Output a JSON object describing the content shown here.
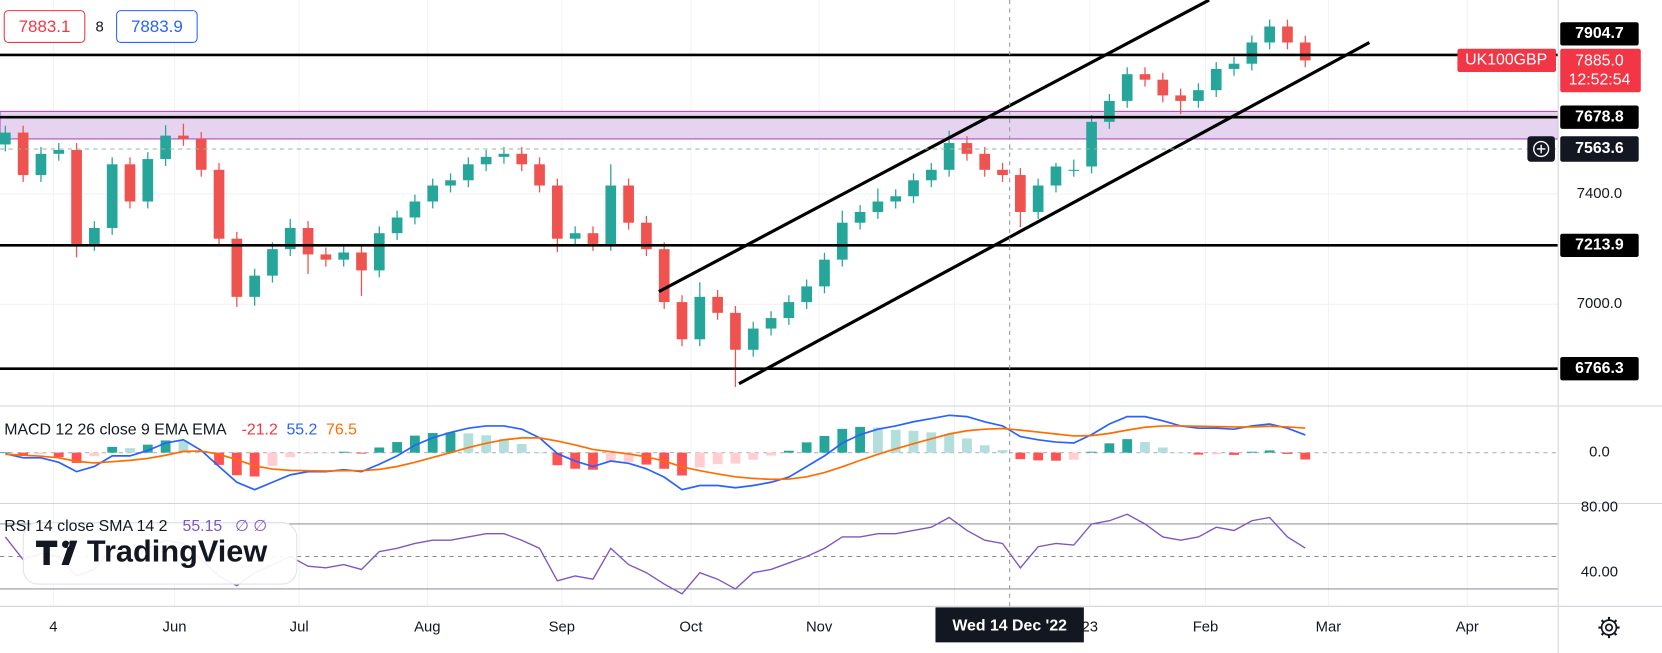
{
  "header": {
    "bid": 7883.1,
    "spread": 8,
    "ask": 7883.9
  },
  "chart_data": [
    {
      "type": "candlestick",
      "symbol": "UK100GBP",
      "last_price": {
        "value": 7885,
        "label": "7885.0"
      },
      "countdown": "12:52:54",
      "open": [
        7580,
        7623,
        7469,
        7546,
        7560,
        7219,
        7277,
        7508,
        7373,
        7527,
        7612,
        7600,
        7488,
        7238,
        7027,
        7104,
        7200,
        7277,
        7181,
        7162,
        7188,
        7123,
        7258,
        7315,
        7373,
        7431,
        7450,
        7508,
        7535,
        7546,
        7508,
        7431,
        7238,
        7258,
        7219,
        7431,
        7296,
        7200,
        7008,
        6873,
        7027,
        6969,
        6835,
        6912,
        6950,
        7008,
        7065,
        7162,
        7296,
        7335,
        7373,
        7392,
        7450,
        7488,
        7585,
        7546,
        7488,
        7469,
        7335,
        7431,
        7488,
        7500,
        7662,
        7738,
        7835,
        7815,
        7758,
        7738,
        7777,
        7854,
        7873,
        7950,
        8008,
        7950
      ],
      "high": [
        7648,
        7648,
        7571,
        7585,
        7585,
        7302,
        7533,
        7533,
        7552,
        7650,
        7655,
        7625,
        7513,
        7263,
        7129,
        7225,
        7310,
        7302,
        7206,
        7213,
        7213,
        7283,
        7340,
        7398,
        7456,
        7475,
        7533,
        7560,
        7571,
        7571,
        7533,
        7456,
        7283,
        7283,
        7508,
        7456,
        7321,
        7225,
        7033,
        7080,
        7052,
        6994,
        6937,
        6975,
        7033,
        7090,
        7187,
        7340,
        7360,
        7420,
        7417,
        7475,
        7513,
        7630,
        7610,
        7571,
        7513,
        7494,
        7456,
        7513,
        7525,
        7687,
        7763,
        7860,
        7860,
        7840,
        7783,
        7802,
        7879,
        7898,
        7975,
        8033,
        8033,
        7975
      ],
      "low": [
        7555,
        7444,
        7444,
        7521,
        7170,
        7194,
        7252,
        7348,
        7348,
        7502,
        7575,
        7463,
        7213,
        6990,
        6995,
        7079,
        7175,
        7110,
        7137,
        7137,
        7030,
        7098,
        7233,
        7290,
        7348,
        7406,
        7425,
        7483,
        7510,
        7483,
        7406,
        7190,
        7213,
        7194,
        7194,
        7271,
        7175,
        6983,
        6848,
        6848,
        6944,
        6700,
        6810,
        6887,
        6925,
        6983,
        7040,
        7137,
        7271,
        7310,
        7348,
        7367,
        7425,
        7463,
        7521,
        7463,
        7444,
        7280,
        7310,
        7406,
        7463,
        7475,
        7637,
        7713,
        7790,
        7733,
        7690,
        7713,
        7752,
        7829,
        7848,
        7925,
        7925,
        7860
      ],
      "close": [
        7623,
        7469,
        7546,
        7560,
        7219,
        7277,
        7508,
        7373,
        7527,
        7612,
        7600,
        7488,
        7238,
        7027,
        7104,
        7200,
        7277,
        7181,
        7162,
        7188,
        7123,
        7258,
        7315,
        7373,
        7431,
        7450,
        7508,
        7535,
        7546,
        7508,
        7431,
        7238,
        7258,
        7219,
        7431,
        7296,
        7200,
        7008,
        6873,
        7027,
        6969,
        6835,
        6912,
        6950,
        7008,
        7065,
        7162,
        7296,
        7335,
        7373,
        7392,
        7450,
        7488,
        7585,
        7546,
        7488,
        7469,
        7335,
        7431,
        7500,
        7488,
        7662,
        7738,
        7835,
        7815,
        7758,
        7738,
        7777,
        7854,
        7873,
        7950,
        8008,
        7950,
        7885
      ],
      "up_color": "#26a69a",
      "down_color": "#ef5350",
      "xlim": [
        -0.3,
        87.2
      ],
      "xticks": [
        {
          "value": 2.7,
          "label": "4"
        },
        {
          "value": 9.5,
          "label": "Jun"
        },
        {
          "value": 16.5,
          "label": "Jul"
        },
        {
          "value": 23.7,
          "label": "Aug"
        },
        {
          "value": 31.25,
          "label": "Sep"
        },
        {
          "value": 38.5,
          "label": "Oct"
        },
        {
          "value": 45.7,
          "label": "Nov"
        },
        {
          "value": 53.3,
          "label": null
        },
        {
          "value": 60.9,
          "label": "23"
        },
        {
          "value": 67.4,
          "label": "Feb"
        },
        {
          "value": 74.3,
          "label": "Mar"
        },
        {
          "value": 82.1,
          "label": "Apr"
        }
      ],
      "ylim": [
        6631,
        8104
      ],
      "yticks": [
        {
          "value": 7000,
          "label": "7000.0"
        },
        {
          "value": 7400,
          "label": "7400.0"
        }
      ],
      "grid": true,
      "hlines": [
        7904.7,
        7678.8,
        7213.9,
        6766.3
      ],
      "zone": [
        7600,
        7700
      ],
      "zone_color": "#e6d3ef",
      "trendlines": [
        {
          "from": [
            36.7,
            7046
          ],
          "to": [
            67.6,
            8104
          ]
        },
        {
          "from": [
            41.2,
            6712
          ],
          "to": [
            76.6,
            7950
          ]
        }
      ],
      "crosshair": {
        "x": 56.4,
        "x_label": "Wed 14 Dec '22",
        "y": 7563.6
      }
    },
    {
      "type": "macd",
      "title": "MACD 12 26 close 9 EMA EMA",
      "histogram": {
        "colors": [
          "#26a69a",
          "#b2dfdb",
          "#ffcdd2",
          "#ff5252"
        ],
        "values": [
          2,
          -8,
          -5,
          -14,
          -32,
          -11,
          18,
          14,
          25,
          38,
          36,
          2,
          -38,
          -70,
          -74,
          -41,
          -14,
          -3,
          -2,
          3,
          -3,
          16,
          33,
          53,
          61,
          63,
          60,
          54,
          43,
          27,
          0,
          -39,
          -50,
          -53,
          -29,
          -29,
          -37,
          -50,
          -71,
          -46,
          -36,
          -34,
          -22,
          -9,
          6,
          32,
          52,
          74,
          80,
          78,
          71,
          68,
          63,
          58,
          44,
          23,
          8,
          -20,
          -24,
          -25,
          -22,
          3,
          29,
          42,
          33,
          16,
          0,
          -6,
          -5,
          -7,
          3,
          7,
          -4,
          -21.2
        ]
      },
      "macd": {
        "color": "#2962ff",
        "values": [
          -3,
          -16,
          -16,
          -30,
          -59,
          -43,
          -10,
          -10,
          7,
          30,
          40,
          7,
          -43,
          -92,
          -115,
          -92,
          -69,
          -59,
          -59,
          -53,
          -59,
          -36,
          -10,
          23,
          46,
          63,
          76,
          83,
          83,
          73,
          46,
          -3,
          -26,
          -43,
          -26,
          -33,
          -50,
          -76,
          -115,
          -102,
          -102,
          -109,
          -102,
          -92,
          -76,
          -43,
          -10,
          30,
          56,
          73,
          83,
          96,
          106,
          116,
          112,
          96,
          83,
          50,
          40,
          33,
          30,
          56,
          89,
          112,
          112,
          99,
          83,
          76,
          76,
          73,
          83,
          89,
          76,
          55.2
        ]
      },
      "signal": {
        "color": "#ff6d00",
        "values": [
          -5,
          -8,
          -11,
          -16,
          -27,
          -32,
          -28,
          -24,
          -18,
          -8,
          4,
          5,
          -5,
          -22,
          -41,
          -51,
          -55,
          -56,
          -57,
          -56,
          -56,
          -52,
          -43,
          -30,
          -15,
          0,
          16,
          29,
          40,
          46,
          46,
          36,
          24,
          10,
          3,
          -4,
          -13,
          -26,
          -44,
          -56,
          -66,
          -75,
          -80,
          -83,
          -82,
          -75,
          -62,
          -44,
          -24,
          -5,
          12,
          28,
          43,
          58,
          68,
          73,
          75,
          70,
          64,
          58,
          52,
          53,
          60,
          70,
          79,
          83,
          83,
          82,
          81,
          80,
          80,
          82,
          80,
          76.5
        ]
      },
      "ylim": [
        -158,
        145
      ],
      "yticks": [
        {
          "value": 0,
          "label": "0.0"
        }
      ]
    },
    {
      "type": "rsi",
      "title": "RSI 14 close SMA 14 2",
      "sma_label": "∅ ∅",
      "rsi": {
        "color": "#7e57c2",
        "values": [
          62,
          48,
          52,
          50,
          38,
          42,
          55,
          48,
          55,
          60,
          58,
          48,
          38,
          32,
          40,
          45,
          50,
          44,
          43,
          45,
          42,
          53,
          55,
          58,
          60,
          60,
          62,
          64,
          64,
          60,
          55,
          35,
          38,
          36,
          55,
          45,
          40,
          33,
          27,
          40,
          36,
          30,
          40,
          42,
          46,
          50,
          55,
          62,
          62,
          64,
          64,
          66,
          68,
          74,
          66,
          60,
          58,
          43,
          56,
          58,
          57,
          70,
          72,
          76,
          70,
          62,
          60,
          62,
          68,
          66,
          72,
          74,
          62,
          55.15
        ]
      },
      "levels": [
        70,
        50,
        30
      ],
      "ylim": [
        19.3,
        82.6
      ],
      "yticks": [
        {
          "value": 80,
          "label": "80.00"
        },
        {
          "value": 40,
          "label": "40.00"
        }
      ]
    }
  ],
  "watermark": "TradingView"
}
